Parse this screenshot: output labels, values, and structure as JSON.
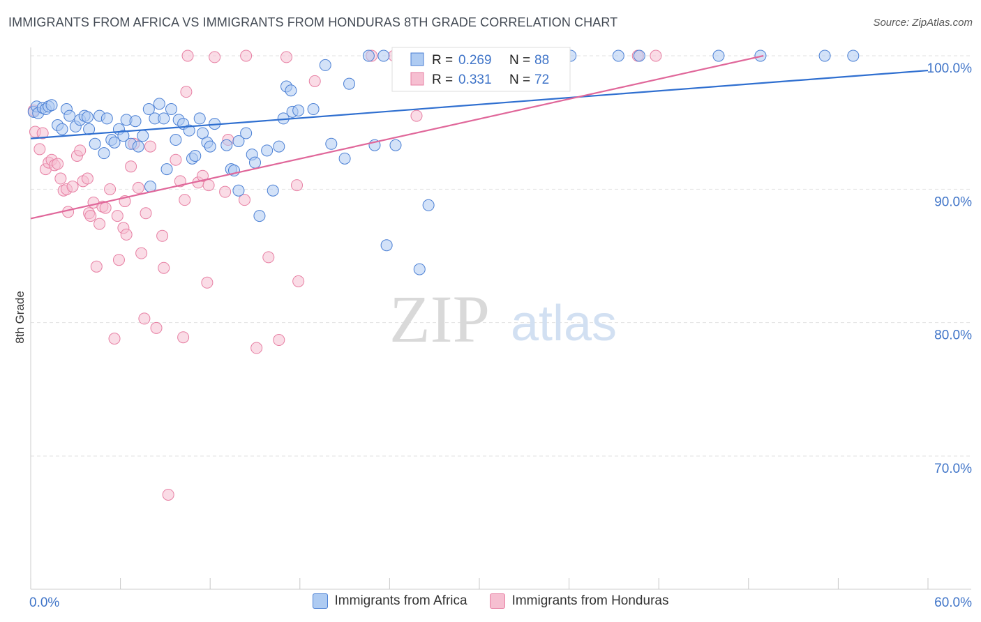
{
  "header": {
    "title": "IMMIGRANTS FROM AFRICA VS IMMIGRANTS FROM HONDURAS 8TH GRADE CORRELATION CHART",
    "source": "Source: ZipAtlas.com"
  },
  "watermark": {
    "zip": "ZIP",
    "atlas": "atlas"
  },
  "colors": {
    "blue": "#4a7fd4",
    "blue_fill": "#aecbf2",
    "blue_line": "#2f6fd0",
    "pink": "#e77fa3",
    "pink_fill": "#f6bfd1",
    "pink_line": "#e0679a",
    "axis_label": "#3f74c8",
    "grid": "#e2e2e2"
  },
  "stats": {
    "africa": {
      "r_label": "R =",
      "r_value": "0.269",
      "n_label": "N =",
      "n_value": "88"
    },
    "honduras": {
      "r_label": "R =",
      "r_value": "0.331",
      "n_label": "N =",
      "n_value": "72"
    }
  },
  "legend": {
    "africa": "Immigrants from Africa",
    "honduras": "Immigrants from Honduras"
  },
  "chart_data": {
    "type": "scatter",
    "title": "IMMIGRANTS FROM AFRICA VS IMMIGRANTS FROM HONDURAS 8TH GRADE CORRELATION CHART",
    "xlabel": "",
    "ylabel": "8th Grade",
    "xlim": [
      0,
      60
    ],
    "ylim": [
      60.5,
      101.5
    ],
    "x_tick_labels": [
      {
        "value": 0,
        "label": "0.0%"
      },
      {
        "value": 60,
        "label": "60.0%"
      }
    ],
    "y_tick_labels": [
      {
        "value": 100,
        "label": "100.0%"
      },
      {
        "value": 90,
        "label": "90.0%"
      },
      {
        "value": 80,
        "label": "80.0%"
      },
      {
        "value": 70,
        "label": "70.0%"
      }
    ],
    "series": [
      {
        "name": "Immigrants from Africa",
        "color": "#4a7fd4",
        "trend": {
          "x": [
            0,
            60
          ],
          "y": [
            93.8,
            98.9
          ]
        },
        "points": [
          [
            0.2,
            95.8
          ],
          [
            0.4,
            96.2
          ],
          [
            0.5,
            95.7
          ],
          [
            0.8,
            96.1
          ],
          [
            1.0,
            96.0
          ],
          [
            1.2,
            96.2
          ],
          [
            1.4,
            96.3
          ],
          [
            1.8,
            94.8
          ],
          [
            2.1,
            94.5
          ],
          [
            2.4,
            96.0
          ],
          [
            2.6,
            95.5
          ],
          [
            3.0,
            94.7
          ],
          [
            3.3,
            95.2
          ],
          [
            3.6,
            95.5
          ],
          [
            3.8,
            95.4
          ],
          [
            3.9,
            94.5
          ],
          [
            4.3,
            93.4
          ],
          [
            4.6,
            95.5
          ],
          [
            4.9,
            92.7
          ],
          [
            5.1,
            95.3
          ],
          [
            5.4,
            93.7
          ],
          [
            5.6,
            93.5
          ],
          [
            5.9,
            94.5
          ],
          [
            6.2,
            94.0
          ],
          [
            6.4,
            95.2
          ],
          [
            6.7,
            93.4
          ],
          [
            7.0,
            95.1
          ],
          [
            7.2,
            93.2
          ],
          [
            7.5,
            94.0
          ],
          [
            7.9,
            96.0
          ],
          [
            8.0,
            90.2
          ],
          [
            8.3,
            95.3
          ],
          [
            8.6,
            96.4
          ],
          [
            8.9,
            95.3
          ],
          [
            9.1,
            91.5
          ],
          [
            9.4,
            96.0
          ],
          [
            9.7,
            93.7
          ],
          [
            9.9,
            95.2
          ],
          [
            10.2,
            94.9
          ],
          [
            10.6,
            94.4
          ],
          [
            10.8,
            92.3
          ],
          [
            11.0,
            92.5
          ],
          [
            11.3,
            95.3
          ],
          [
            11.5,
            94.2
          ],
          [
            11.8,
            93.5
          ],
          [
            12.0,
            93.2
          ],
          [
            12.3,
            94.9
          ],
          [
            13.1,
            93.3
          ],
          [
            13.4,
            91.5
          ],
          [
            13.6,
            91.4
          ],
          [
            13.9,
            93.6
          ],
          [
            13.9,
            89.9
          ],
          [
            14.4,
            94.2
          ],
          [
            14.8,
            92.6
          ],
          [
            15.0,
            92.0
          ],
          [
            15.3,
            88.0
          ],
          [
            15.8,
            92.9
          ],
          [
            16.2,
            89.9
          ],
          [
            16.6,
            93.2
          ],
          [
            16.9,
            95.3
          ],
          [
            17.1,
            97.7
          ],
          [
            17.4,
            97.4
          ],
          [
            17.5,
            95.8
          ],
          [
            17.9,
            95.9
          ],
          [
            18.9,
            96.0
          ],
          [
            19.7,
            99.3
          ],
          [
            20.1,
            93.4
          ],
          [
            21.0,
            92.3
          ],
          [
            21.3,
            97.9
          ],
          [
            22.6,
            100.0
          ],
          [
            23.0,
            93.3
          ],
          [
            23.6,
            100.0
          ],
          [
            23.8,
            85.8
          ],
          [
            24.4,
            93.3
          ],
          [
            24.9,
            99.2
          ],
          [
            25.6,
            100.0
          ],
          [
            26.0,
            84.0
          ],
          [
            26.6,
            88.8
          ],
          [
            29.4,
            100.0
          ],
          [
            32.2,
            100.0
          ],
          [
            35.0,
            100.0
          ],
          [
            36.1,
            100.0
          ],
          [
            39.3,
            100.0
          ],
          [
            40.7,
            100.0
          ],
          [
            46.0,
            100.0
          ],
          [
            48.8,
            100.0
          ],
          [
            53.1,
            100.0
          ],
          [
            55.0,
            100.0
          ]
        ]
      },
      {
        "name": "Immigrants from Honduras",
        "color": "#e77fa3",
        "trend": {
          "x": [
            0,
            49
          ],
          "y": [
            87.8,
            100.0
          ]
        },
        "points": [
          [
            0.2,
            95.9
          ],
          [
            0.3,
            94.3
          ],
          [
            0.6,
            93.0
          ],
          [
            0.8,
            94.2
          ],
          [
            1.0,
            91.5
          ],
          [
            1.2,
            92.0
          ],
          [
            1.4,
            92.2
          ],
          [
            1.6,
            91.8
          ],
          [
            1.8,
            91.9
          ],
          [
            2.0,
            90.8
          ],
          [
            2.2,
            89.9
          ],
          [
            2.4,
            90.0
          ],
          [
            2.5,
            88.3
          ],
          [
            2.8,
            90.2
          ],
          [
            3.1,
            92.5
          ],
          [
            3.3,
            92.9
          ],
          [
            3.5,
            90.6
          ],
          [
            3.8,
            90.8
          ],
          [
            3.9,
            88.2
          ],
          [
            4.0,
            88.0
          ],
          [
            4.2,
            89.0
          ],
          [
            4.4,
            84.2
          ],
          [
            4.6,
            87.4
          ],
          [
            4.8,
            88.7
          ],
          [
            5.0,
            88.6
          ],
          [
            5.3,
            90.0
          ],
          [
            5.6,
            78.8
          ],
          [
            5.8,
            88.0
          ],
          [
            5.9,
            84.7
          ],
          [
            6.2,
            87.1
          ],
          [
            6.3,
            89.1
          ],
          [
            6.4,
            86.6
          ],
          [
            6.7,
            91.7
          ],
          [
            6.9,
            93.4
          ],
          [
            7.2,
            90.1
          ],
          [
            7.4,
            85.2
          ],
          [
            7.6,
            80.3
          ],
          [
            7.7,
            88.2
          ],
          [
            8.0,
            93.2
          ],
          [
            8.4,
            79.6
          ],
          [
            8.8,
            86.5
          ],
          [
            8.9,
            84.1
          ],
          [
            9.2,
            67.1
          ],
          [
            9.7,
            92.2
          ],
          [
            10.0,
            90.6
          ],
          [
            10.2,
            78.9
          ],
          [
            10.3,
            89.2
          ],
          [
            10.4,
            97.3
          ],
          [
            10.5,
            100.0
          ],
          [
            11.2,
            90.5
          ],
          [
            11.5,
            91.0
          ],
          [
            11.8,
            83.0
          ],
          [
            11.9,
            90.3
          ],
          [
            12.3,
            99.9
          ],
          [
            13.0,
            89.8
          ],
          [
            13.2,
            93.7
          ],
          [
            14.3,
            89.2
          ],
          [
            14.4,
            100.0
          ],
          [
            15.1,
            78.1
          ],
          [
            15.9,
            84.9
          ],
          [
            16.6,
            78.7
          ],
          [
            17.1,
            99.9
          ],
          [
            17.8,
            90.3
          ],
          [
            17.9,
            83.1
          ],
          [
            19.0,
            98.1
          ],
          [
            22.8,
            100.0
          ],
          [
            24.3,
            100.0
          ],
          [
            25.8,
            95.5
          ],
          [
            27.0,
            100.0
          ],
          [
            29.6,
            100.0
          ],
          [
            40.6,
            100.0
          ],
          [
            41.8,
            100.0
          ]
        ]
      }
    ]
  }
}
